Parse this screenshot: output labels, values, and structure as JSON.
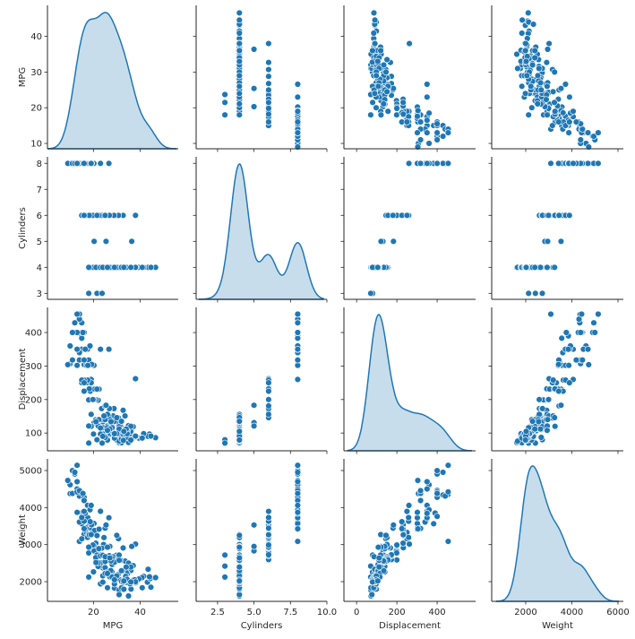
{
  "chart_data": {
    "type": "scatter",
    "layout": "pairplot",
    "diagonal": "kde",
    "colors": {
      "marker": "#1f77b4",
      "marker_edge": "#ffffff",
      "kde_line": "#1f77b4",
      "kde_fill": "#1f77b4",
      "axis": "#262626"
    },
    "grid": false,
    "legend": "none",
    "variables": [
      {
        "name": "MPG",
        "xlim": [
          0.3,
          56.3
        ],
        "ylim": [
          8.5,
          48.7
        ],
        "xticks": [
          20,
          40
        ],
        "xtick_labels": [
          "20",
          "40"
        ],
        "yticks": [
          10,
          20,
          30,
          40
        ],
        "ytick_labels": [
          "10",
          "20",
          "30",
          "40"
        ]
      },
      {
        "name": "Cylinders",
        "xlim": [
          1.03,
          10.0
        ],
        "ylim": [
          2.77,
          8.25
        ],
        "xticks": [
          2.5,
          5.0,
          7.5,
          10.0
        ],
        "xtick_labels": [
          "2.5",
          "5.0",
          "7.5",
          "10.0"
        ],
        "yticks": [
          3,
          4,
          5,
          6,
          7,
          8
        ],
        "ytick_labels": [
          "3",
          "4",
          "5",
          "6",
          "7",
          "8"
        ]
      },
      {
        "name": "Displacement",
        "xlim": [
          -63,
          591
        ],
        "ylim": [
          47,
          475
        ],
        "xticks": [
          0,
          200,
          400
        ],
        "xtick_labels": [
          "0",
          "200",
          "400"
        ],
        "yticks": [
          100,
          200,
          300,
          400
        ],
        "ytick_labels": [
          "100",
          "200",
          "300",
          "400"
        ]
      },
      {
        "name": "Weight",
        "xlim": [
          525,
          6233
        ],
        "ylim": [
          1468,
          5315
        ],
        "xticks": [
          2000,
          4000,
          6000
        ],
        "xtick_labels": [
          "2000",
          "4000",
          "6000"
        ],
        "yticks": [
          2000,
          3000,
          4000,
          5000
        ],
        "ytick_labels": [
          "2000",
          "3000",
          "4000",
          "5000"
        ]
      }
    ],
    "points": {
      "columns": [
        "MPG",
        "Cylinders",
        "Displacement",
        "Weight"
      ],
      "rows": [
        [
          18,
          8,
          307,
          3504
        ],
        [
          15,
          8,
          350,
          3693
        ],
        [
          18,
          8,
          318,
          3436
        ],
        [
          16,
          8,
          304,
          3433
        ],
        [
          17,
          8,
          302,
          3449
        ],
        [
          15,
          8,
          429,
          4341
        ],
        [
          14,
          8,
          454,
          4354
        ],
        [
          14,
          8,
          440,
          4312
        ],
        [
          14,
          8,
          455,
          4425
        ],
        [
          15,
          8,
          390,
          3850
        ],
        [
          15,
          8,
          383,
          3563
        ],
        [
          14,
          8,
          340,
          3609
        ],
        [
          15,
          8,
          400,
          3761
        ],
        [
          14,
          8,
          455,
          3086
        ],
        [
          10,
          8,
          360,
          4615
        ],
        [
          10,
          8,
          307,
          4376
        ],
        [
          11,
          8,
          318,
          4382
        ],
        [
          9,
          8,
          304,
          4732
        ],
        [
          13,
          8,
          400,
          4464
        ],
        [
          12,
          8,
          429,
          4955
        ],
        [
          13,
          8,
          350,
          4502
        ],
        [
          12,
          8,
          400,
          4906
        ],
        [
          13,
          8,
          400,
          4422
        ],
        [
          11,
          8,
          400,
          4997
        ],
        [
          12,
          8,
          429,
          4952
        ],
        [
          13,
          8,
          350,
          4699
        ],
        [
          14,
          8,
          318,
          4457
        ],
        [
          16,
          8,
          400,
          4278
        ],
        [
          17.5,
          8,
          350,
          4060
        ],
        [
          20.2,
          8,
          302,
          3570
        ],
        [
          18.1,
          8,
          302,
          3410
        ],
        [
          19.2,
          8,
          305,
          3425
        ],
        [
          17.6,
          8,
          302,
          3725
        ],
        [
          23,
          8,
          350,
          3900
        ],
        [
          26.6,
          8,
          350,
          3725
        ],
        [
          18.5,
          8,
          360,
          3940
        ],
        [
          16.5,
          8,
          350,
          3845
        ],
        [
          15.5,
          8,
          400,
          4380
        ],
        [
          13,
          8,
          302,
          3870
        ],
        [
          13,
          8,
          455,
          5140
        ],
        [
          16,
          8,
          318,
          4190
        ],
        [
          19,
          8,
          260,
          4060
        ],
        [
          22,
          6,
          198,
          2833
        ],
        [
          18,
          6,
          199,
          2774
        ],
        [
          21,
          6,
          200,
          2587
        ],
        [
          19,
          6,
          250,
          3302
        ],
        [
          16,
          6,
          250,
          3278
        ],
        [
          17,
          6,
          250,
          3329
        ],
        [
          15,
          6,
          250,
          3158
        ],
        [
          18,
          6,
          232,
          3288
        ],
        [
          20,
          6,
          232,
          2914
        ],
        [
          21,
          6,
          231,
          3039
        ],
        [
          19.2,
          6,
          231,
          3535
        ],
        [
          18.6,
          6,
          225,
          3620
        ],
        [
          20.5,
          6,
          231,
          3380
        ],
        [
          32.7,
          6,
          168,
          2910
        ],
        [
          38,
          6,
          262,
          3015
        ],
        [
          30.7,
          6,
          145,
          3160
        ],
        [
          28.8,
          6,
          173,
          2595
        ],
        [
          24.2,
          6,
          146,
          2930
        ],
        [
          26.8,
          6,
          173,
          2700
        ],
        [
          23.5,
          6,
          173,
          2725
        ],
        [
          22.4,
          6,
          231,
          3415
        ],
        [
          17.5,
          6,
          258,
          3193
        ],
        [
          16,
          6,
          258,
          3632
        ],
        [
          20.2,
          6,
          200,
          2965
        ],
        [
          19,
          6,
          156,
          2930
        ],
        [
          19.8,
          6,
          200,
          2990
        ],
        [
          21.5,
          6,
          231,
          3245
        ],
        [
          18.2,
          6,
          232,
          3265
        ],
        [
          15,
          6,
          258,
          3730
        ],
        [
          16,
          6,
          225,
          3430
        ],
        [
          16,
          6,
          250,
          3897
        ],
        [
          25,
          6,
          181,
          3445
        ],
        [
          20.3,
          5,
          131,
          2830
        ],
        [
          25.4,
          5,
          183,
          3530
        ],
        [
          36.4,
          5,
          121,
          2950
        ],
        [
          18,
          3,
          70,
          2124
        ],
        [
          21.5,
          3,
          80,
          2720
        ],
        [
          23.7,
          3,
          70,
          2420
        ],
        [
          24,
          4,
          113,
          2372
        ],
        [
          27,
          4,
          97,
          2130
        ],
        [
          26,
          4,
          97,
          1835
        ],
        [
          25,
          4,
          110,
          2672
        ],
        [
          24,
          4,
          107,
          2430
        ],
        [
          25,
          4,
          104,
          2375
        ],
        [
          26,
          4,
          121,
          2234
        ],
        [
          21,
          4,
          140,
          2648
        ],
        [
          28,
          4,
          140,
          2264
        ],
        [
          25,
          4,
          113,
          2228
        ],
        [
          23,
          4,
          120,
          2506
        ],
        [
          22,
          4,
          140,
          2408
        ],
        [
          29,
          4,
          97,
          1825
        ],
        [
          31,
          4,
          71,
          1773
        ],
        [
          35,
          4,
          72,
          1613
        ],
        [
          32,
          4,
          71,
          1836
        ],
        [
          30,
          4,
          79,
          2074
        ],
        [
          31,
          4,
          76,
          1649
        ],
        [
          32,
          4,
          83,
          2003
        ],
        [
          29,
          4,
          90,
          1937
        ],
        [
          24,
          4,
          116,
          2158
        ],
        [
          26,
          4,
          79,
          2255
        ],
        [
          19,
          4,
          120,
          3270
        ],
        [
          20,
          4,
          97,
          2264
        ],
        [
          22,
          4,
          121,
          2511
        ],
        [
          23,
          4,
          115,
          2694
        ],
        [
          24,
          4,
          134,
          2711
        ],
        [
          25,
          4,
          90,
          2223
        ],
        [
          33,
          4,
          91,
          1795
        ],
        [
          28,
          4,
          107,
          2464
        ],
        [
          29,
          4,
          85,
          2070
        ],
        [
          31.5,
          4,
          98,
          2045
        ],
        [
          36.1,
          4,
          98,
          1800
        ],
        [
          30,
          4,
          97,
          2155
        ],
        [
          32.1,
          4,
          98,
          2000
        ],
        [
          37.2,
          4,
          86,
          2050
        ],
        [
          27.2,
          4,
          135,
          2600
        ],
        [
          34.1,
          4,
          86,
          1975
        ],
        [
          35.7,
          4,
          98,
          1940
        ],
        [
          43.1,
          4,
          90,
          1985
        ],
        [
          44.3,
          4,
          90,
          2085
        ],
        [
          46.6,
          4,
          86,
          2110
        ],
        [
          44,
          4,
          97,
          2130
        ],
        [
          43.4,
          4,
          90,
          2335
        ],
        [
          41.5,
          4,
          98,
          2144
        ],
        [
          40.8,
          4,
          85,
          2110
        ],
        [
          39.4,
          4,
          85,
          2070
        ],
        [
          38.1,
          4,
          89,
          1968
        ],
        [
          37,
          4,
          119,
          2434
        ],
        [
          36,
          4,
          105,
          2300
        ],
        [
          34.5,
          4,
          105,
          2215
        ],
        [
          33.5,
          4,
          151,
          2556
        ],
        [
          32.8,
          4,
          78,
          1985
        ],
        [
          31.6,
          4,
          120,
          2575
        ],
        [
          30.5,
          4,
          97,
          2190
        ],
        [
          29.8,
          4,
          134,
          2711
        ],
        [
          28.4,
          4,
          151,
          2670
        ],
        [
          27.4,
          4,
          121,
          2300
        ],
        [
          26.6,
          4,
          151,
          2635
        ],
        [
          25.8,
          4,
          156,
          2620
        ],
        [
          24.3,
          4,
          151,
          3003
        ],
        [
          23.6,
          4,
          140,
          2905
        ],
        [
          22.3,
          4,
          140,
          2890
        ],
        [
          21.1,
          4,
          134,
          2515
        ],
        [
          28,
          4,
          120,
          2625
        ],
        [
          27,
          4,
          140,
          2950
        ],
        [
          26,
          4,
          156,
          2585
        ],
        [
          34,
          4,
          108,
          2245
        ],
        [
          35,
          4,
          122,
          2500
        ],
        [
          29,
          4,
          135,
          2525
        ],
        [
          31,
          4,
          119,
          2720
        ],
        [
          44.6,
          4,
          91,
          1850
        ],
        [
          40.9,
          4,
          85,
          1835
        ],
        [
          33.8,
          4,
          97,
          2144
        ],
        [
          32.4,
          4,
          107,
          2290
        ],
        [
          36,
          4,
          120,
          2395
        ],
        [
          37.7,
          4,
          89,
          2050
        ],
        [
          34.4,
          4,
          98,
          2065
        ],
        [
          29.5,
          4,
          97,
          2155
        ],
        [
          25,
          4,
          140,
          2542
        ],
        [
          18,
          4,
          121,
          2933
        ],
        [
          24.5,
          4,
          151,
          3190
        ],
        [
          30,
          4,
          146,
          3250
        ],
        [
          26,
          4,
          116,
          2220
        ],
        [
          27.5,
          4,
          134,
          2560
        ],
        [
          31,
          4,
          112,
          2575
        ],
        [
          28,
          4,
          116,
          2123
        ],
        [
          23,
          4,
          97,
          1940
        ],
        [
          25,
          4,
          87,
          2672
        ],
        [
          30,
          4,
          98,
          2155
        ],
        [
          24,
          4,
          90,
          1985
        ],
        [
          27,
          4,
          112,
          2640
        ],
        [
          32,
          4,
          135,
          2295
        ],
        [
          34,
          4,
          112,
          2395
        ],
        [
          29,
          4,
          98,
          2051
        ],
        [
          26,
          4,
          108,
          2930
        ],
        [
          38,
          4,
          91,
          1995
        ],
        [
          36,
          4,
          79,
          1990
        ],
        [
          33,
          4,
          105,
          2020
        ]
      ]
    }
  }
}
